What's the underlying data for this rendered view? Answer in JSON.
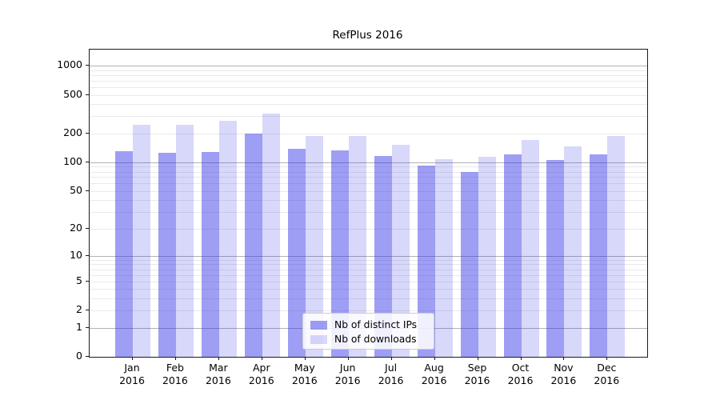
{
  "chart_data": {
    "type": "bar",
    "title": "RefPlus 2016",
    "months": [
      "Jan",
      "Feb",
      "Mar",
      "Apr",
      "May",
      "Jun",
      "Jul",
      "Aug",
      "Sep",
      "Oct",
      "Nov",
      "Dec"
    ],
    "year_label": "2016",
    "series": [
      {
        "name": "Nb of distinct IPs",
        "color": "rgba(40,40,230,0.45)",
        "values": [
          131,
          126,
          128,
          199,
          138,
          133,
          116,
          92,
          79,
          120,
          105,
          122
        ]
      },
      {
        "name": "Nb of downloads",
        "color": "rgba(40,40,230,0.18)",
        "values": [
          243,
          243,
          270,
          320,
          187,
          189,
          151,
          107,
          115,
          171,
          147,
          187
        ]
      }
    ],
    "yscale": "symlog",
    "yticks": [
      0,
      1,
      2,
      5,
      10,
      20,
      50,
      100,
      200,
      500,
      1000
    ],
    "major_gridlines": [
      1,
      10,
      100,
      1000
    ],
    "ylim": [
      0,
      1450
    ],
    "grid": true,
    "legend_position": "lower center",
    "xlabel": "",
    "ylabel": ""
  },
  "colors": {
    "axis": "#1a1a1a",
    "major_grid": "#b2b2b2",
    "minor_grid": "#e9e9e9",
    "legend_border": "#cccccc",
    "legend_bg": "rgba(255,255,255,0.85)"
  }
}
